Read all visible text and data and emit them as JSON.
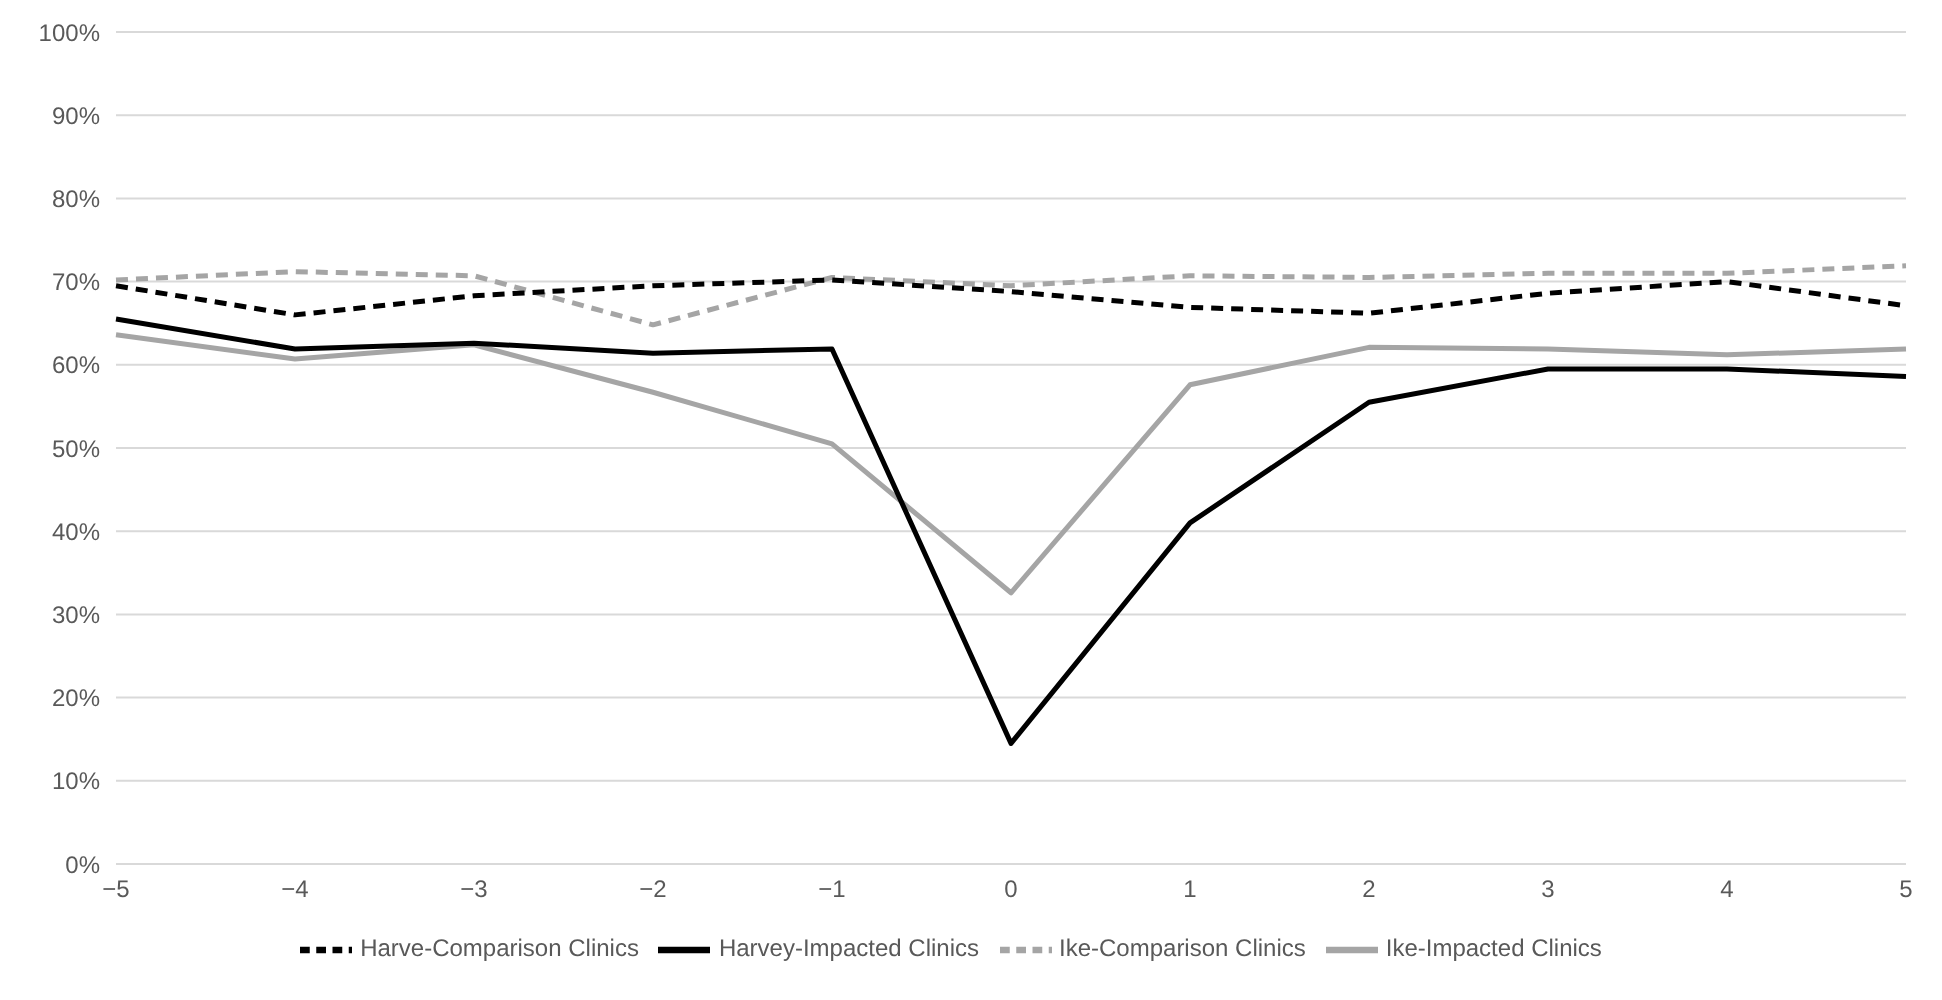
{
  "chart_data": {
    "type": "line",
    "categories": [
      "−5",
      "−4",
      "−3",
      "−2",
      "−1",
      "0",
      "1",
      "2",
      "3",
      "4",
      "5"
    ],
    "ylim": [
      0,
      100
    ],
    "yticks": [
      {
        "value": 0,
        "label": "0%"
      },
      {
        "value": 10,
        "label": "10%"
      },
      {
        "value": 20,
        "label": "20%"
      },
      {
        "value": 30,
        "label": "30%"
      },
      {
        "value": 40,
        "label": "40%"
      },
      {
        "value": 50,
        "label": "50%"
      },
      {
        "value": 60,
        "label": "60%"
      },
      {
        "value": 70,
        "label": "70%"
      },
      {
        "value": 80,
        "label": "80%"
      },
      {
        "value": 90,
        "label": "90%"
      },
      {
        "value": 100,
        "label": "100%"
      }
    ],
    "grid": "y",
    "legend": "bottom",
    "marker": "none",
    "series": [
      {
        "name": "Ike-Impacted Clinics",
        "color": "#a5a5a5",
        "line_style": "solid",
        "values": [
          63.6,
          60.7,
          62.4,
          56.7,
          50.5,
          32.6,
          57.6,
          62.1,
          61.9,
          61.2,
          61.9
        ]
      },
      {
        "name": "Harvey-Impacted Clinics",
        "color": "#000000",
        "line_style": "solid",
        "values": [
          65.5,
          61.9,
          62.6,
          61.4,
          61.9,
          14.5,
          41,
          55.5,
          59.5,
          59.5,
          58.6
        ]
      },
      {
        "name": "Ike-Comparison Clinics",
        "color": "#a5a5a5",
        "line_style": "dashed",
        "values": [
          70.2,
          71.2,
          70.7,
          64.8,
          70.5,
          69.5,
          70.7,
          70.5,
          71,
          71,
          71.9
        ]
      },
      {
        "name": "Harve-Comparison Clinics",
        "color": "#000000",
        "line_style": "dashed",
        "values": [
          69.5,
          66,
          68.3,
          69.5,
          70.2,
          68.8,
          66.9,
          66.2,
          68.6,
          70,
          67.1
        ]
      }
    ]
  }
}
